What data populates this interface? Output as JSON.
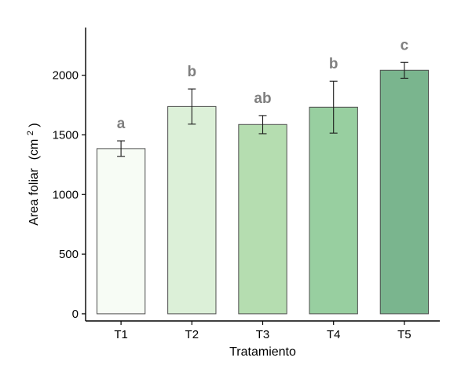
{
  "chart_data": {
    "type": "bar",
    "categories": [
      "T1",
      "T2",
      "T3",
      "T4",
      "T5"
    ],
    "values": [
      1385,
      1738,
      1587,
      1732,
      2042
    ],
    "error_low": [
      1320,
      1590,
      1510,
      1515,
      1975
    ],
    "error_high": [
      1450,
      1885,
      1662,
      1950,
      2108
    ],
    "significance_labels": [
      "a",
      "b",
      "ab",
      "b",
      "c"
    ],
    "colors": [
      "#f7fcf5",
      "#dcf0d8",
      "#b5ddb0",
      "#98cfa0",
      "#7ab58e"
    ],
    "xlabel": "Tratamiento",
    "ylabel_main": "Area foliar",
    "ylabel_unit": "(cm",
    "ylabel_sup": "2",
    "ylabel_close": ")",
    "yticks": [
      0,
      500,
      1000,
      1500,
      2000
    ],
    "ytick_labels": [
      "0",
      "500",
      "1000",
      "1500",
      "2000"
    ],
    "ylim": [
      -60,
      2400
    ],
    "grid": false,
    "legend": "none"
  }
}
